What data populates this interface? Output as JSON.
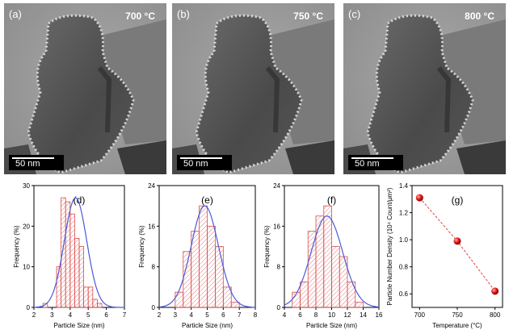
{
  "tem_images": [
    {
      "panel": "(a)",
      "temperature": "700 °C",
      "scale_bar": "50 nm"
    },
    {
      "panel": "(b)",
      "temperature": "750 °C",
      "scale_bar": "50 nm"
    },
    {
      "panel": "(c)",
      "temperature": "800 °C",
      "scale_bar": "50 nm"
    }
  ],
  "chart_data": [
    {
      "type": "bar",
      "panel": "(d)",
      "xlabel": "Particle Size (nm)",
      "ylabel": "Frequency (%)",
      "xlim": [
        2,
        7
      ],
      "ylim": [
        0,
        30
      ],
      "xticks": [
        2,
        3,
        4,
        5,
        6,
        7
      ],
      "yticks": [
        0,
        10,
        20,
        30
      ],
      "bin_width": 0.25,
      "bin_centers": [
        2.625,
        2.875,
        3.125,
        3.375,
        3.625,
        3.875,
        4.125,
        4.375,
        4.625,
        4.875,
        5.125,
        5.375,
        5.625,
        5.875,
        6.125
      ],
      "values": [
        1,
        0,
        0,
        10,
        27,
        26,
        23,
        17,
        15,
        5,
        5,
        2,
        1,
        0,
        0
      ],
      "fit": {
        "type": "gaussian",
        "mean": 4.3,
        "sigma": 0.62,
        "peak": 27
      }
    },
    {
      "type": "bar",
      "panel": "(e)",
      "xlabel": "Particle Size (nm)",
      "ylabel": "Frequency (%)",
      "xlim": [
        2,
        8
      ],
      "ylim": [
        0,
        24
      ],
      "xticks": [
        2,
        3,
        4,
        5,
        6,
        7,
        8
      ],
      "yticks": [
        0,
        8,
        16,
        24
      ],
      "bin_width": 0.5,
      "bin_centers": [
        2.75,
        3.25,
        3.75,
        4.25,
        4.75,
        5.25,
        5.75,
        6.25,
        6.75
      ],
      "values": [
        0,
        3,
        11,
        15,
        20,
        16,
        12,
        4,
        1
      ],
      "fit": {
        "type": "gaussian",
        "mean": 4.85,
        "sigma": 0.85,
        "peak": 20
      }
    },
    {
      "type": "bar",
      "panel": "(f)",
      "xlabel": "Particle Size (nm)",
      "ylabel": "Frequency (%)",
      "xlim": [
        4,
        16
      ],
      "ylim": [
        0,
        24
      ],
      "xticks": [
        4,
        6,
        8,
        10,
        12,
        14,
        16
      ],
      "yticks": [
        0,
        8,
        16,
        24
      ],
      "bin_width": 1,
      "bin_centers": [
        5.5,
        6.5,
        7.5,
        8.5,
        9.5,
        10.5,
        11.5,
        12.5,
        13.5
      ],
      "values": [
        3,
        5,
        15,
        18,
        20,
        12,
        10,
        5,
        1
      ],
      "fit": {
        "type": "gaussian",
        "mean": 9.4,
        "sigma": 2.0,
        "peak": 18
      }
    },
    {
      "type": "scatter",
      "panel": "(g)",
      "xlabel": "Temperature (°C)",
      "ylabel": "Particle Number Density (10⁴ Count/μm²)",
      "xlim": [
        690,
        810
      ],
      "ylim": [
        0.5,
        1.4
      ],
      "xticks": [
        700,
        750,
        800
      ],
      "yticks": [
        0.6,
        0.8,
        1.0,
        1.2,
        1.4
      ],
      "x": [
        700,
        750,
        800
      ],
      "y": [
        1.31,
        0.99,
        0.62
      ],
      "trend": "dashed"
    }
  ]
}
